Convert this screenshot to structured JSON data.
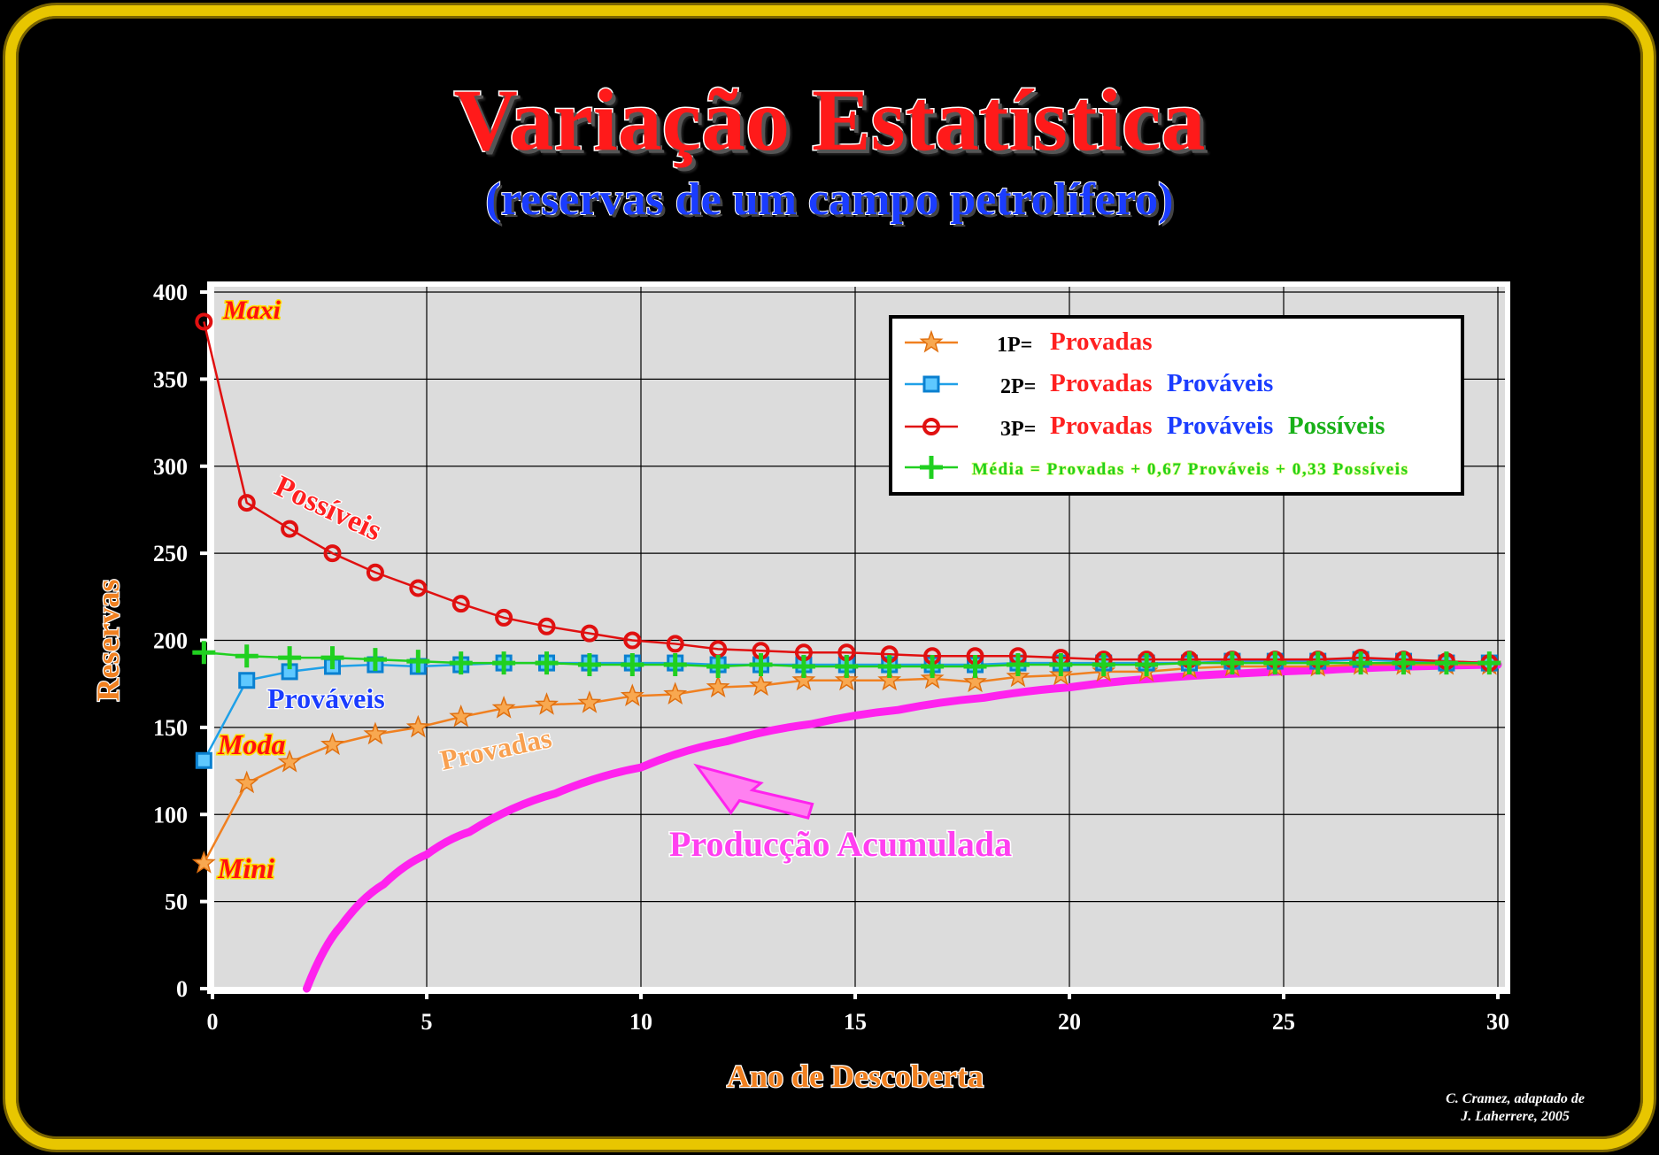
{
  "title": "Variação Estatística",
  "subtitle": "(reservas de um campo petrolífero)",
  "credit_line1": "C. Cramez, adaptado de",
  "credit_line2": "J. Laherrere, 2005",
  "colors": {
    "provadas": "#f08020",
    "provaveis": "#1fa0e8",
    "possiveis": "#e01010",
    "media": "#20d020",
    "producao": "#ff22ee",
    "frame": "#e8c600"
  },
  "chart_data": {
    "type": "line",
    "xlabel": "Ano de Descoberta",
    "ylabel": "Reservas",
    "xlim": [
      0,
      30
    ],
    "ylim": [
      0,
      400
    ],
    "xticks": [
      0,
      5,
      10,
      15,
      20,
      25,
      30
    ],
    "yticks": [
      0,
      50,
      100,
      150,
      200,
      250,
      300,
      350,
      400
    ],
    "grid": true,
    "legend_position": "top-right",
    "legend": [
      {
        "key": "1P=",
        "parts": [
          {
            "text": "Provadas",
            "color": "#ff2020"
          }
        ]
      },
      {
        "key": "2P=",
        "parts": [
          {
            "text": "Provadas",
            "color": "#ff2020"
          },
          {
            "text": "+",
            "color": "#ffffff"
          },
          {
            "text": "Prováveis",
            "color": "#1a3cff"
          }
        ]
      },
      {
        "key": "3P=",
        "parts": [
          {
            "text": "Provadas",
            "color": "#ff2020"
          },
          {
            "text": "+",
            "color": "#ffffff"
          },
          {
            "text": "Prováveis",
            "color": "#1a3cff"
          },
          {
            "text": "+",
            "color": "#ffffff"
          },
          {
            "text": "Possíveis",
            "color": "#18b018"
          }
        ]
      },
      {
        "key": "",
        "parts": [
          {
            "text": "Média = Provadas + 0,67 Prováveis + 0,33 Possíveis",
            "color": "#20d020"
          }
        ]
      }
    ],
    "series": [
      {
        "name": "1P",
        "marker": "star",
        "x": [
          -0.2,
          0.8,
          1.8,
          2.8,
          3.8,
          4.8,
          5.8,
          6.8,
          7.8,
          8.8,
          9.8,
          10.8,
          11.8,
          12.8,
          13.8,
          14.8,
          15.8,
          16.8,
          17.8,
          18.8,
          19.8,
          20.8,
          21.8,
          22.8,
          23.8,
          24.8,
          25.8,
          26.8,
          27.8,
          28.8,
          29.8
        ],
        "y": [
          72,
          118,
          130,
          140,
          146,
          150,
          156,
          161,
          163,
          164,
          168,
          169,
          173,
          174,
          177,
          177,
          177,
          178,
          176,
          179,
          180,
          182,
          182,
          184,
          185,
          185,
          185,
          186,
          186,
          186,
          186
        ]
      },
      {
        "name": "2P",
        "marker": "square",
        "x": [
          -0.2,
          0.8,
          1.8,
          2.8,
          3.8,
          4.8,
          5.8,
          6.8,
          7.8,
          8.8,
          9.8,
          10.8,
          11.8,
          12.8,
          13.8,
          14.8,
          15.8,
          16.8,
          17.8,
          18.8,
          19.8,
          20.8,
          21.8,
          22.8,
          23.8,
          24.8,
          25.8,
          26.8,
          27.8,
          28.8,
          29.8
        ],
        "y": [
          131,
          177,
          182,
          185,
          186,
          185,
          186,
          187,
          187,
          187,
          187,
          187,
          186,
          186,
          186,
          186,
          186,
          186,
          186,
          187,
          187,
          187,
          187,
          187,
          188,
          188,
          188,
          189,
          188,
          187,
          187
        ]
      },
      {
        "name": "3P",
        "marker": "circle",
        "x": [
          -0.2,
          0.8,
          1.8,
          2.8,
          3.8,
          4.8,
          5.8,
          6.8,
          7.8,
          8.8,
          9.8,
          10.8,
          11.8,
          12.8,
          13.8,
          14.8,
          15.8,
          16.8,
          17.8,
          18.8,
          19.8,
          20.8,
          21.8,
          22.8,
          23.8,
          24.8,
          25.8,
          26.8,
          27.8,
          28.8,
          29.8
        ],
        "y": [
          383,
          279,
          264,
          250,
          239,
          230,
          221,
          213,
          208,
          204,
          200,
          198,
          195,
          194,
          193,
          193,
          192,
          191,
          191,
          191,
          190,
          189,
          189,
          189,
          189,
          189,
          189,
          190,
          189,
          188,
          187
        ]
      },
      {
        "name": "Média",
        "marker": "plus",
        "x": [
          -0.2,
          0.8,
          1.8,
          2.8,
          3.8,
          4.8,
          5.8,
          6.8,
          7.8,
          8.8,
          9.8,
          10.8,
          11.8,
          12.8,
          13.8,
          14.8,
          15.8,
          16.8,
          17.8,
          18.8,
          19.8,
          20.8,
          21.8,
          22.8,
          23.8,
          24.8,
          25.8,
          26.8,
          27.8,
          28.8,
          29.8
        ],
        "y": [
          193,
          191,
          190,
          190,
          189,
          188,
          187,
          187,
          187,
          186,
          186,
          186,
          185,
          186,
          185,
          185,
          185,
          185,
          185,
          186,
          186,
          186,
          186,
          187,
          187,
          187,
          187,
          187,
          187,
          187,
          187
        ]
      },
      {
        "name": "Producção Acumulada",
        "marker": "none",
        "x": [
          2.2,
          3,
          4,
          5,
          6,
          8,
          10,
          12,
          14,
          16,
          18,
          20,
          22,
          24,
          26,
          28,
          30
        ],
        "y": [
          0,
          36,
          60,
          77,
          90,
          112,
          127,
          142,
          152,
          160,
          167,
          173,
          178,
          181,
          183,
          185,
          186
        ]
      }
    ],
    "annotations": [
      "Maxi",
      "Possíveis",
      "Prováveis",
      "Moda",
      "Provadas",
      "Mini",
      "Producção Acumulada"
    ]
  }
}
